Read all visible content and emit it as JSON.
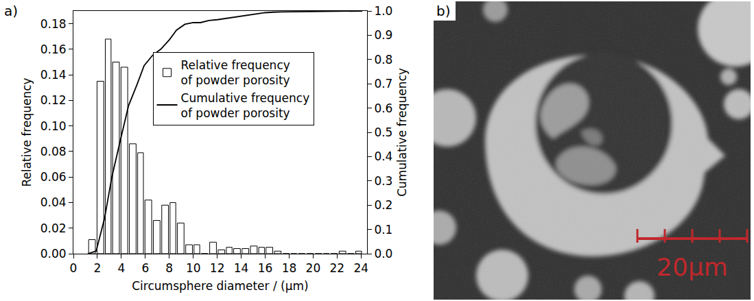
{
  "chart_data": {
    "type": "histogram",
    "panel_label": "a)",
    "xlabel": "Circumsphere diameter / (μm)",
    "ylabel": "Relative frequency",
    "y2label": "Cumulative frequency",
    "bins": [
      1.2,
      1.9,
      2.6,
      3.2,
      3.9,
      4.6,
      5.3,
      5.9,
      6.6,
      7.3,
      8.0,
      8.6,
      9.3,
      10.0,
      10.6,
      11.3,
      12.0,
      12.7,
      13.3,
      14.0,
      14.7,
      15.4,
      16.0,
      16.7,
      17.4,
      18.1,
      18.7,
      19.4,
      20.1,
      20.8,
      21.4,
      22.1,
      22.8,
      23.5,
      24.1
    ],
    "series": [
      {
        "name": "Relative frequency of powder porosity",
        "type": "bar",
        "color": "#ffffff",
        "values": [
          0.011,
          0.135,
          0.168,
          0.15,
          0.146,
          0.086,
          0.079,
          0.042,
          0.026,
          0.038,
          0.04,
          0.024,
          0.007,
          0.007,
          0.0,
          0.009,
          0.003,
          0.005,
          0.004,
          0.004,
          0.006,
          0.005,
          0.005,
          0.002,
          0.0,
          0.0,
          0.0,
          0.0,
          0.0,
          0.0,
          0.0,
          0.002,
          0.0,
          0.002
        ]
      },
      {
        "name": "Cumulative frequency of powder porosity",
        "type": "line",
        "color": "#000000",
        "axis": "y2",
        "x": [
          1.2,
          1.9,
          2.6,
          3.2,
          3.9,
          4.6,
          5.3,
          5.9,
          6.6,
          7.3,
          8.0,
          8.6,
          9.3,
          10.0,
          10.6,
          11.3,
          12.0,
          12.7,
          13.3,
          14.0,
          14.7,
          15.4,
          16.0,
          16.7,
          17.4,
          24.1
        ],
        "values": [
          0,
          0.011,
          0.146,
          0.314,
          0.464,
          0.61,
          0.696,
          0.775,
          0.817,
          0.843,
          0.881,
          0.921,
          0.945,
          0.952,
          0.952,
          0.961,
          0.964,
          0.969,
          0.973,
          0.977,
          0.983,
          0.988,
          0.993,
          0.995,
          0.996,
          1.0
        ]
      }
    ],
    "xlim": [
      0,
      24.5
    ],
    "xticks": [
      0,
      2,
      4,
      6,
      8,
      10,
      12,
      14,
      16,
      18,
      20,
      22,
      24
    ],
    "ylim": [
      0,
      0.19
    ],
    "yticks": [
      {
        "value": 0,
        "label": "0.00"
      },
      {
        "value": 0.02,
        "label": "0.02"
      },
      {
        "value": 0.04,
        "label": "0.04"
      },
      {
        "value": 0.06,
        "label": "0.06"
      },
      {
        "value": 0.08,
        "label": "0.08"
      },
      {
        "value": 0.1,
        "label": "0.10"
      },
      {
        "value": 0.12,
        "label": "0.12"
      },
      {
        "value": 0.14,
        "label": "0.14"
      },
      {
        "value": 0.16,
        "label": "0.16"
      },
      {
        "value": 0.18,
        "label": "0.18"
      }
    ],
    "y2lim": [
      0,
      1.0
    ],
    "y2ticks": [
      {
        "value": 0,
        "label": "0.0"
      },
      {
        "value": 0.1,
        "label": "0.1"
      },
      {
        "value": 0.2,
        "label": "0.2"
      },
      {
        "value": 0.3,
        "label": "0.3"
      },
      {
        "value": 0.4,
        "label": "0.4"
      },
      {
        "value": 0.5,
        "label": "0.5"
      },
      {
        "value": 0.6,
        "label": "0.6"
      },
      {
        "value": 0.7,
        "label": "0.7"
      },
      {
        "value": 0.8,
        "label": "0.8"
      },
      {
        "value": 0.9,
        "label": "0.9"
      },
      {
        "value": 1.0,
        "label": "1.0"
      }
    ],
    "legend": "center right",
    "grid": false
  },
  "image": {
    "panel_label": "b)",
    "scale_bar": "20μm"
  }
}
